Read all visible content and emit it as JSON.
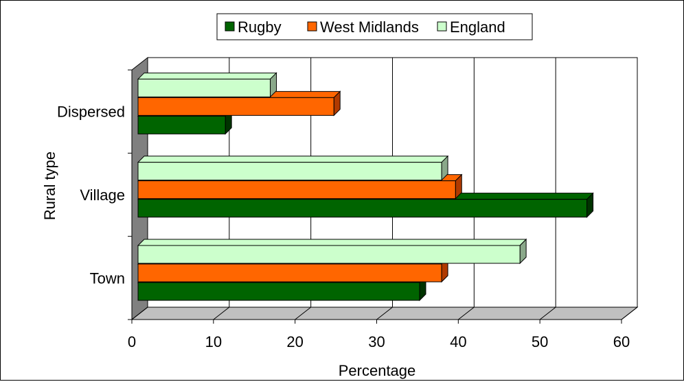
{
  "chart_data": {
    "type": "bar",
    "orientation": "horizontal",
    "style": "3d",
    "categories": [
      "Town",
      "Village",
      "Dispersed"
    ],
    "series": [
      {
        "name": "Rugby",
        "values": [
          34.5,
          55.0,
          10.7
        ],
        "color": "#006400",
        "side_color": "#003300"
      },
      {
        "name": "West Midlands",
        "values": [
          37.2,
          38.9,
          24.0
        ],
        "color": "#ff6600",
        "side_color": "#b03a00"
      },
      {
        "name": "England",
        "values": [
          46.8,
          37.2,
          16.2
        ],
        "color": "#ccffcc",
        "side_color": "#8aa88a"
      }
    ],
    "xlabel": "Percentage",
    "ylabel": "Rural type",
    "xlim": [
      0,
      60
    ],
    "xticks": [
      "0",
      "10",
      "20",
      "30",
      "40",
      "50",
      "60"
    ],
    "grid": "vertical",
    "legend": "top",
    "colors": {
      "wall": "#ffffff",
      "side_wall": "#808080",
      "floor": "#c0c0c0"
    }
  }
}
